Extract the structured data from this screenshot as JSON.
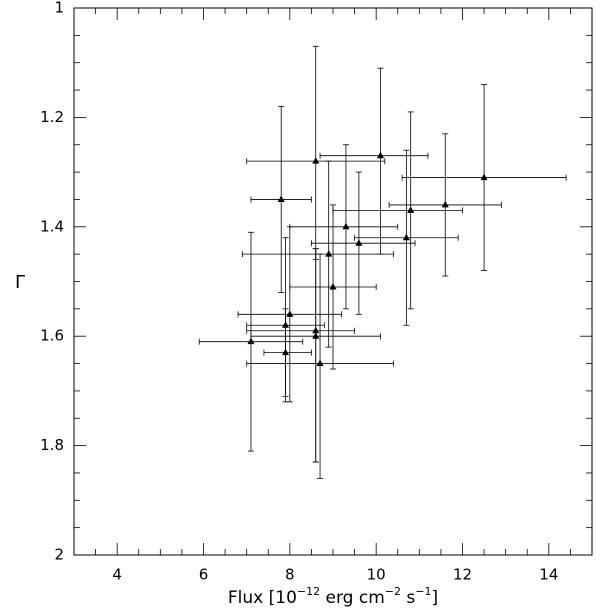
{
  "chart_data": {
    "type": "scatter",
    "xlabel_parts": [
      "Flux [10",
      "−12",
      " erg cm",
      "−2",
      " s",
      "−1",
      "]"
    ],
    "ylabel": "Γ",
    "x": [
      8.6,
      10.1,
      7.8,
      12.5,
      11.6,
      10.8,
      10.7,
      9.3,
      9.6,
      8.9,
      9.0,
      8.0,
      7.9,
      7.1,
      8.6,
      8.6,
      7.9,
      8.7
    ],
    "y": [
      1.28,
      1.27,
      1.35,
      1.31,
      1.36,
      1.37,
      1.42,
      1.4,
      1.43,
      1.45,
      1.51,
      1.56,
      1.58,
      1.61,
      1.59,
      1.6,
      1.63,
      1.65
    ],
    "x_low": [
      7.0,
      8.7,
      7.1,
      10.6,
      10.3,
      9.0,
      9.5,
      8.0,
      8.5,
      6.9,
      8.0,
      6.8,
      7.0,
      5.9,
      7.0,
      7.1,
      7.4,
      7.0
    ],
    "x_high": [
      10.2,
      11.2,
      8.5,
      14.4,
      12.9,
      12.0,
      11.9,
      10.5,
      10.9,
      10.4,
      10.0,
      9.2,
      8.8,
      8.3,
      9.5,
      10.1,
      8.5,
      10.4
    ],
    "y_low": [
      1.07,
      1.11,
      1.18,
      1.14,
      1.23,
      1.19,
      1.26,
      1.25,
      1.3,
      1.28,
      1.36,
      1.4,
      1.42,
      1.41,
      1.44,
      1.44,
      1.55,
      1.45
    ],
    "y_high": [
      1.46,
      1.45,
      1.52,
      1.48,
      1.49,
      1.55,
      1.58,
      1.55,
      1.56,
      1.62,
      1.66,
      1.72,
      1.72,
      1.81,
      1.83,
      1.83,
      1.71,
      1.86
    ],
    "color": "#000000",
    "xlim": [
      3,
      15
    ],
    "xticks": [
      4,
      6,
      8,
      10,
      12,
      14
    ],
    "xminorticks": [
      3.5,
      4.5,
      5,
      5.5,
      6.5,
      7,
      7.5,
      8.5,
      9,
      9.5,
      10.5,
      11,
      11.5,
      12.5,
      13,
      13.5,
      14.5
    ],
    "ylim": [
      1,
      2
    ],
    "yticks": [
      1,
      1.2,
      1.4,
      1.6,
      1.8,
      2
    ],
    "yminorticks": [
      1.05,
      1.1,
      1.15,
      1.25,
      1.3,
      1.35,
      1.45,
      1.5,
      1.55,
      1.65,
      1.7,
      1.75,
      1.85,
      1.9,
      1.95
    ],
    "y_inverted": true
  }
}
